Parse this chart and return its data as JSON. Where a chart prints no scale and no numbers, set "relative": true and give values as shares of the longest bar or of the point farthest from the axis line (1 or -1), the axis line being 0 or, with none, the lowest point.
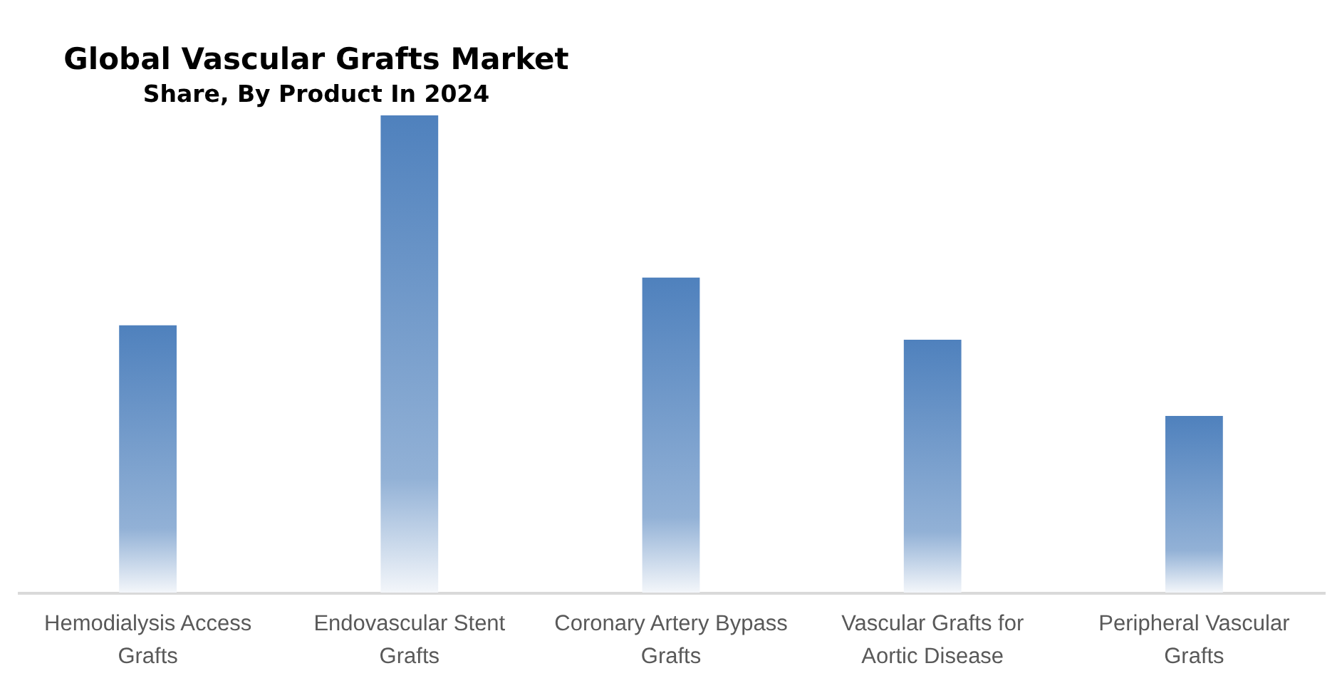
{
  "chart_data": {
    "type": "bar",
    "title": "Global Vascular Grafts Market",
    "subtitle": "Share, By Product In 2024",
    "categories": [
      "Hemodialysis Access Grafts",
      "Endovascular Stent Grafts",
      "Coronary Artery Bypass Grafts",
      "Vascular Grafts for Aortic Disease",
      "Peripheral Vascular Grafts"
    ],
    "values": [
      0.56,
      1,
      0.66,
      0.53,
      0.37
    ],
    "color": "#4f81bd",
    "relative": true
  }
}
